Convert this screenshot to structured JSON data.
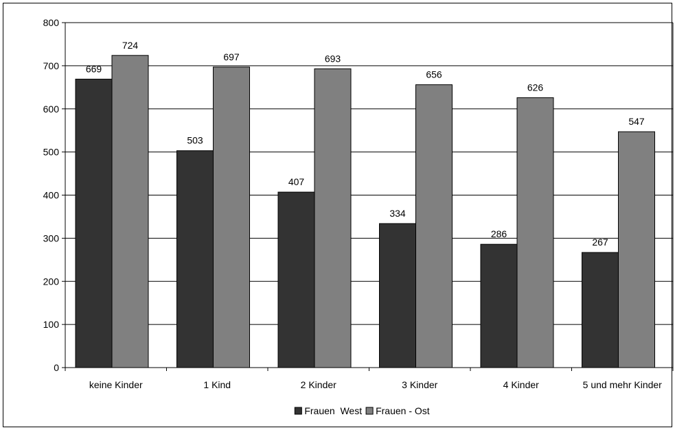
{
  "chart_data": {
    "type": "bar",
    "title": "",
    "xlabel": "",
    "ylabel": "",
    "categories": [
      "keine Kinder",
      "1 Kind",
      "2 Kinder",
      "3 Kinder",
      "4 Kinder",
      "5 und mehr Kinder"
    ],
    "series": [
      {
        "name": "Frauen  West",
        "values": [
          669,
          503,
          407,
          334,
          286,
          267
        ],
        "color": "#333333"
      },
      {
        "name": "Frauen - Ost",
        "values": [
          724,
          697,
          693,
          656,
          626,
          547
        ],
        "color": "#808080"
      }
    ],
    "ylim": [
      0,
      800
    ],
    "yticks": [
      0,
      100,
      200,
      300,
      400,
      500,
      600,
      700,
      800
    ],
    "grid": true,
    "data_labels": true,
    "legend_position": "bottom"
  }
}
